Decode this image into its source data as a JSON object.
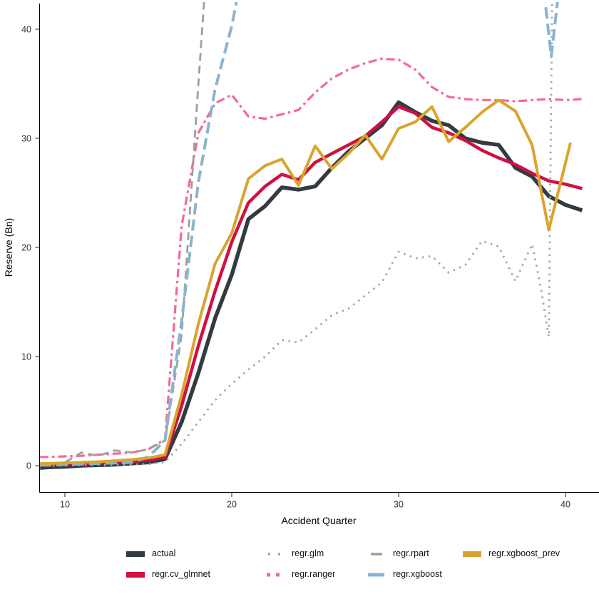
{
  "chart_data": {
    "type": "line",
    "title": "",
    "xlabel": "Accident Quarter",
    "ylabel": "Reserve (Bn)",
    "xlim": [
      8.4,
      42
    ],
    "ylim": [
      0,
      42
    ],
    "x_ticks": [
      10,
      20,
      30,
      40
    ],
    "y_ticks": [
      0,
      10,
      20,
      30,
      40
    ],
    "grid": false,
    "legend_position": "bottom",
    "background": "#ffffff",
    "axis_color": "#000000",
    "series": [
      {
        "name": "actual",
        "color": "#333b42",
        "style": "solid",
        "width": 5.5,
        "x": [
          8.5,
          9,
          10,
          11,
          12,
          13,
          14,
          15,
          16,
          17,
          18,
          19,
          20,
          21,
          22,
          23,
          24,
          25,
          26,
          27,
          28,
          29,
          30,
          31,
          32,
          33,
          34,
          35,
          36,
          37,
          38,
          39,
          40,
          41
        ],
        "y": [
          -0.2,
          -0.15,
          -0.1,
          0,
          0.05,
          0.1,
          0.2,
          0.3,
          0.6,
          4,
          8.5,
          13.5,
          17.5,
          22.6,
          23.8,
          25.5,
          25.3,
          25.6,
          27.3,
          28.8,
          30,
          31.2,
          33.3,
          32.4,
          31.6,
          31.2,
          30,
          29.6,
          29.4,
          27.3,
          26.5,
          24.7,
          23.9,
          23.4
        ]
      },
      {
        "name": "regr.cv_glmnet",
        "color": "#ce1141",
        "style": "solid",
        "width": 4.5,
        "x": [
          8.5,
          9,
          10,
          11,
          12,
          13,
          14,
          15,
          16,
          17,
          18,
          19,
          20,
          21,
          22,
          23,
          24,
          25,
          26,
          27,
          28,
          29,
          30,
          31,
          32,
          33,
          34,
          35,
          36,
          37,
          38,
          39,
          40,
          41
        ],
        "y": [
          0.1,
          0.1,
          0.15,
          0.2,
          0.25,
          0.3,
          0.4,
          0.5,
          0.8,
          5.5,
          11,
          16,
          20.5,
          24.1,
          25.6,
          26.7,
          26.2,
          27.8,
          28.6,
          29.4,
          30.2,
          31.5,
          32.9,
          32.3,
          31,
          30.5,
          29.8,
          28.9,
          28.2,
          27.6,
          26.8,
          26.1,
          25.8,
          25.4
        ]
      },
      {
        "name": "regr.glm",
        "color": "#a6a6a6",
        "style": "dotted",
        "width": 2.8,
        "x": [
          8.5,
          9,
          10,
          11,
          12,
          13,
          14,
          15,
          16,
          17,
          18,
          19,
          20,
          21,
          22,
          23,
          24,
          25,
          26,
          27,
          28,
          29,
          30,
          31,
          32,
          33,
          34,
          35,
          36,
          37,
          38,
          38.5,
          39,
          39.2
        ],
        "y": [
          0,
          0,
          0,
          0.05,
          0.05,
          0.1,
          0.1,
          0.15,
          0.3,
          2,
          4,
          6,
          7.5,
          8.8,
          10,
          11.5,
          11.3,
          12.5,
          13.8,
          14.4,
          15.6,
          16.8,
          19.6,
          19,
          19.2,
          17.7,
          18.4,
          20.6,
          20.1,
          16.9,
          20.3,
          16.5,
          11.8,
          43
        ]
      },
      {
        "name": "regr.ranger",
        "color": "#f4679f",
        "style": "dashdot",
        "width": 3.2,
        "x": [
          8.5,
          9,
          10,
          11,
          12,
          13,
          14,
          15,
          16,
          17,
          18,
          19,
          20,
          21,
          22,
          23,
          24,
          25,
          26,
          27,
          28,
          29,
          30,
          31,
          32,
          33,
          34,
          35,
          36,
          37,
          38,
          39,
          40,
          41
        ],
        "y": [
          0.8,
          0.8,
          0.85,
          0.9,
          1,
          1.1,
          1.2,
          1.5,
          2.4,
          22,
          30.5,
          33.2,
          34,
          32,
          31.8,
          32.2,
          32.6,
          34.2,
          35.5,
          36.3,
          36.9,
          37.3,
          37.2,
          36.3,
          34.7,
          33.8,
          33.6,
          33.5,
          33.5,
          33.4,
          33.5,
          33.6,
          33.5,
          33.6
        ]
      },
      {
        "name": "regr.rpart",
        "color": "#9e9e9e",
        "style": "dashed",
        "width": 2.8,
        "x": [
          8.5,
          9,
          10,
          11,
          12,
          13,
          14,
          15,
          16,
          17,
          18,
          18.5
        ],
        "y": [
          0.1,
          0.15,
          0.3,
          1.2,
          0.9,
          1.4,
          1.2,
          1.5,
          2.3,
          12,
          35,
          46
        ]
      },
      {
        "name": "regr.xgboost",
        "color": "#8ab4d2",
        "style": "longdash",
        "width": 4,
        "x": [
          8.5,
          9,
          10,
          11,
          12,
          13,
          14,
          15,
          16,
          17,
          18,
          19,
          20,
          20.6,
          null,
          38.6,
          39.15,
          39.7
        ],
        "y": [
          0.05,
          0.05,
          0.1,
          0.15,
          0.2,
          0.25,
          0.3,
          0.8,
          2.3,
          13.3,
          26,
          34.5,
          40.3,
          45,
          null,
          45,
          37.5,
          45
        ]
      },
      {
        "name": "regr.xgboost_prev",
        "color": "#d9a42e",
        "style": "solid",
        "width": 4,
        "x": [
          8.5,
          9,
          10,
          11,
          12,
          13,
          14,
          15,
          16,
          17,
          18,
          19,
          20,
          21,
          22,
          23,
          24,
          25,
          26,
          27,
          28,
          29,
          30,
          31,
          32,
          33,
          34,
          35,
          36,
          37,
          38,
          39,
          40.3
        ],
        "y": [
          0.2,
          0.2,
          0.25,
          0.3,
          0.35,
          0.45,
          0.55,
          0.7,
          1,
          6.5,
          13,
          18.5,
          21.3,
          26.3,
          27.5,
          28.1,
          25.7,
          29.3,
          27.2,
          28.6,
          30.3,
          28.1,
          30.9,
          31.5,
          32.9,
          29.7,
          31,
          32.4,
          33.5,
          32.5,
          29.4,
          21.6,
          29.6
        ]
      }
    ],
    "legend_order": [
      "actual",
      "regr.glm",
      "regr.rpart",
      "regr.xgboost_prev",
      "regr.cv_glmnet",
      "regr.ranger",
      "regr.xgboost"
    ]
  }
}
